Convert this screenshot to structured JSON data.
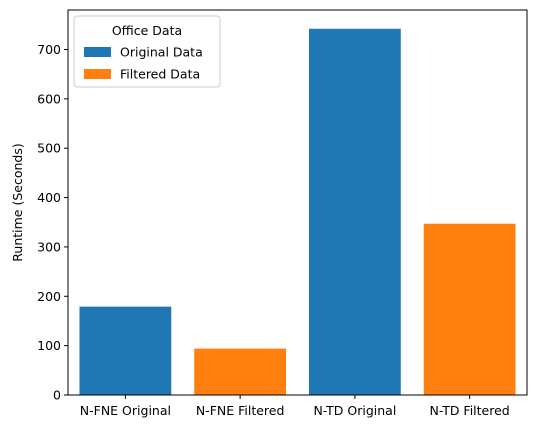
{
  "chart_data": {
    "type": "bar",
    "categories": [
      "N-FNE Original",
      "N-FNE Filtered",
      "N-TD Original",
      "N-TD Filtered"
    ],
    "values": [
      179,
      94,
      742,
      347
    ],
    "bar_series": [
      "Original Data",
      "Filtered Data",
      "Original Data",
      "Filtered Data"
    ],
    "title": "",
    "xlabel": "",
    "ylabel": "Runtime (Seconds)",
    "ylim": [
      0,
      780
    ],
    "yticks": [
      0,
      100,
      200,
      300,
      400,
      500,
      600,
      700
    ],
    "grid": false,
    "legend": {
      "title": "Office Data",
      "placement": "top-left",
      "entries": [
        {
          "name": "Original Data",
          "color": "#1f77b4"
        },
        {
          "name": "Filtered Data",
          "color": "#ff7f0e"
        }
      ]
    }
  }
}
